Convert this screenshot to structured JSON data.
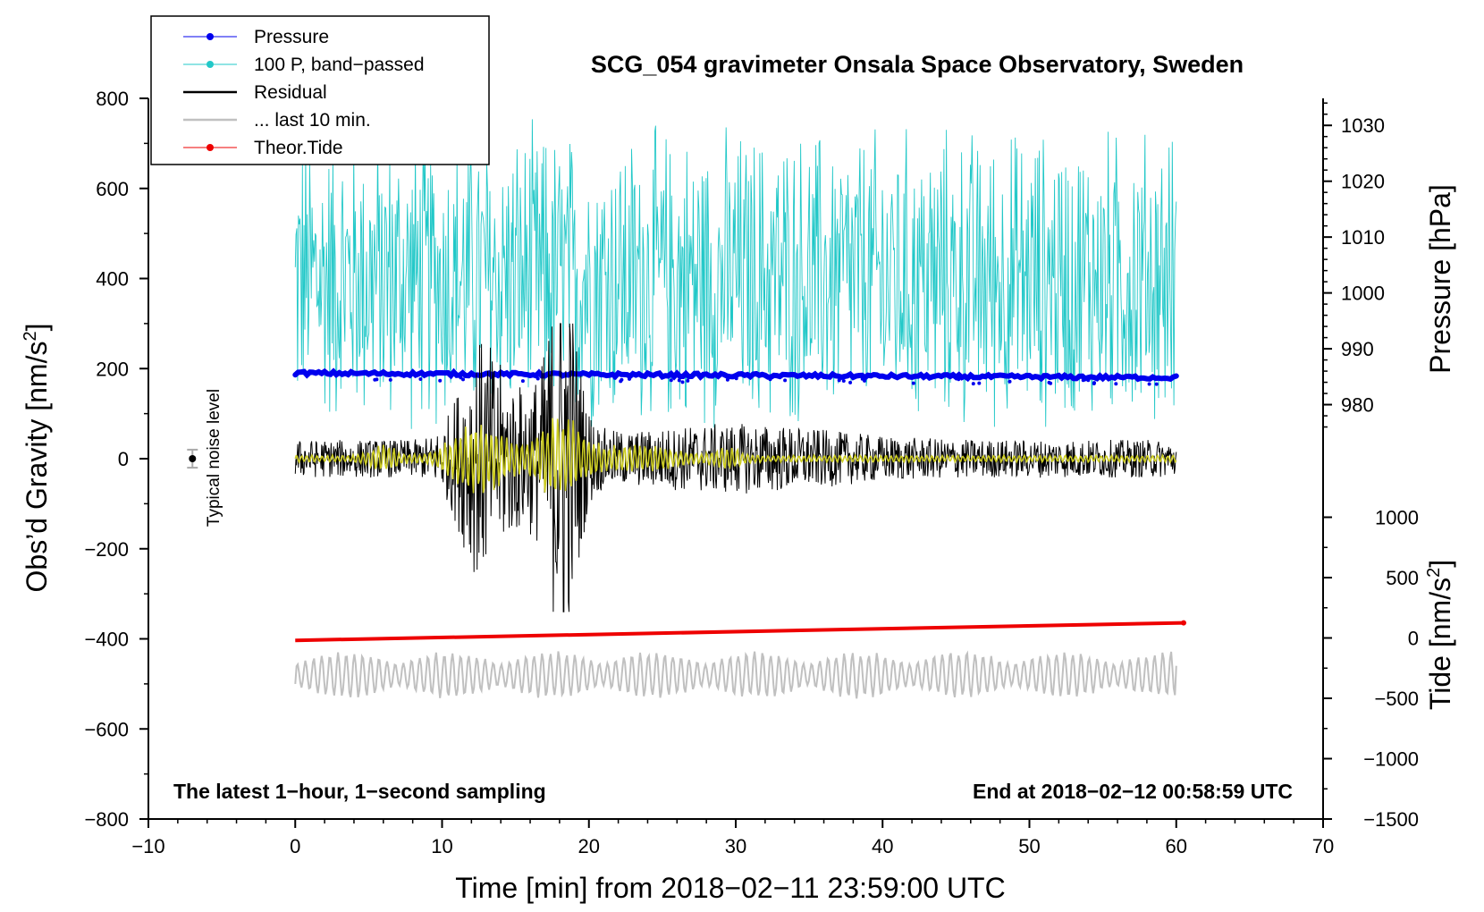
{
  "chart_data": {
    "type": "line",
    "title": "SCG_054 gravimeter Onsala Space Observatory, Sweden",
    "xlabel": "Time [min] from 2018−02−11 23:59:00 UTC",
    "ylabel": "Obs'd Gravity [nm/s²]",
    "ylabel_main": "Obs’d Gravity [nm/s",
    "ylabel_sup": "2",
    "ylabel_close": "]",
    "y2label": "Pressure [hPa]",
    "y3label": "Tide [nm/s²]",
    "y3label_main": "Tide [nm/s",
    "y3label_sup": "2",
    "y3label_close": "]",
    "xlim": [
      -10,
      70
    ],
    "ylim": [
      -800,
      800
    ],
    "x_ticks": [
      -10,
      0,
      10,
      20,
      30,
      40,
      50,
      60,
      70
    ],
    "x_tick_labels": [
      "−10",
      "0",
      "10",
      "20",
      "30",
      "40",
      "50",
      "60",
      "70"
    ],
    "y_ticks": [
      -800,
      -600,
      -400,
      -200,
      0,
      200,
      400,
      600,
      800
    ],
    "y_tick_labels": [
      "−800",
      "−600",
      "−400",
      "−200",
      "0",
      "200",
      "400",
      "600",
      "800"
    ],
    "pressure_axis": {
      "ticks": [
        980,
        990,
        1000,
        1010,
        1020,
        1030
      ],
      "tick_labels": [
        "980",
        "990",
        "1000",
        "1010",
        "1020",
        "1030"
      ],
      "map_to_gravity": [
        [
          980,
          120
        ],
        [
          1030,
          740
        ]
      ]
    },
    "tide_axis": {
      "ticks": [
        -1500,
        -1000,
        -500,
        0,
        500,
        1000
      ],
      "tick_labels": [
        "−1500",
        "−1000",
        "−500",
        "0",
        "500",
        "1000"
      ],
      "map_to_gravity": [
        [
          -1500,
          -800
        ],
        [
          1000,
          -130
        ]
      ]
    },
    "annotation_left": "The latest 1−hour, 1−second sampling",
    "annotation_right": "End at 2018−02−12 00:58:59 UTC",
    "noise_label": "Typical noise level",
    "noise_bar": {
      "x": -7,
      "y": 0,
      "error": 20
    },
    "legend": [
      {
        "label": "Pressure",
        "color": "#0000ee",
        "marker": true
      },
      {
        "label": "100 P, band−passed",
        "color": "#22c8c8",
        "marker": true
      },
      {
        "label": "Residual",
        "color": "#000000",
        "marker": false
      },
      {
        "label": "... last 10 min.",
        "color": "#c0c0c0",
        "marker": false
      },
      {
        "label": "Theor.Tide",
        "color": "#ee0000",
        "marker": true
      }
    ],
    "series": [
      {
        "name": "Pressure",
        "color": "#0000ee",
        "x_range": [
          0,
          60
        ],
        "y_start": 190,
        "y_end": 180,
        "kind": "dots"
      },
      {
        "name": "100 P, band−passed",
        "color": "#22c8c8",
        "x_range": [
          0,
          60
        ],
        "center": 400,
        "amplitude": 350,
        "clip_max": 800,
        "kind": "noisy"
      },
      {
        "name": "Residual",
        "color": "#000000",
        "x_range": [
          0,
          60
        ],
        "center": 0,
        "baseline_amplitude": 60,
        "burst_centers_min": [
          12.5,
          18.3
        ],
        "burst_peak_max": 300,
        "burst_peak_min": -340,
        "kind": "noisy"
      },
      {
        "name": "Residual (smoothed)",
        "color": "#cccc22",
        "x_range": [
          0,
          60
        ],
        "center": 0,
        "burst_centers_min": [
          12.5,
          18
        ],
        "burst_amplitude": 80,
        "kind": "noisy"
      },
      {
        "name": "... last 10 min.",
        "color": "#c0c0c0",
        "x_range": [
          0,
          60
        ],
        "center": -480,
        "amplitude": 45,
        "kind": "noisy"
      },
      {
        "name": "Theor.Tide",
        "color": "#ee0000",
        "x_range": [
          0,
          60.5
        ],
        "tide_start": -20,
        "tide_end": 125,
        "kind": "line"
      }
    ]
  }
}
